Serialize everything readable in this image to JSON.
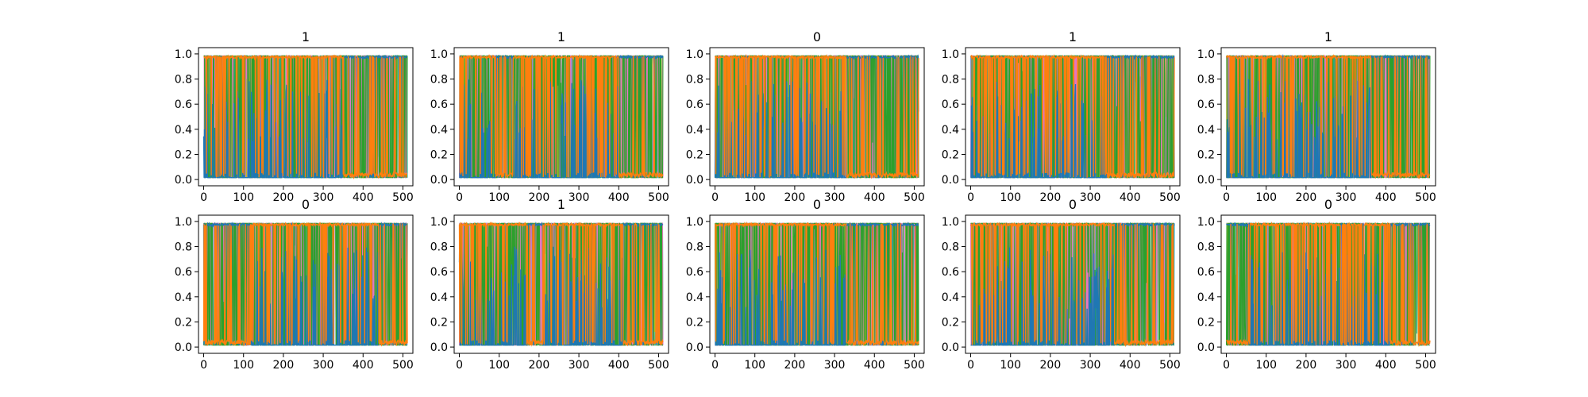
{
  "colors": {
    "blue": "#1f77b4",
    "orange": "#ff7f0e",
    "cyan": "#17becf",
    "olive": "#bcbd22",
    "pink": "#e377c2",
    "green": "#2ca02c",
    "axes": "#000000"
  },
  "chart_data": [
    {
      "type": "line",
      "title": "1",
      "xlim": [
        -13,
        525
      ],
      "ylim": [
        -0.05,
        1.05
      ],
      "xticks": [
        0,
        100,
        200,
        300,
        400,
        500
      ],
      "yticks": [
        0.0,
        0.2,
        0.4,
        0.6,
        0.8,
        1.0
      ],
      "n_points": 512,
      "segments": [
        {
          "dominant": "orange",
          "x": [
            0,
            350
          ]
        },
        {
          "dominant": "blue",
          "x": [
            350,
            512
          ]
        }
      ]
    },
    {
      "type": "line",
      "title": "1",
      "xlim": [
        -13,
        525
      ],
      "ylim": [
        -0.05,
        1.05
      ],
      "xticks": [
        0,
        100,
        200,
        300,
        400,
        500
      ],
      "yticks": [
        0.0,
        0.2,
        0.4,
        0.6,
        0.8,
        1.0
      ],
      "n_points": 512,
      "segments": [
        {
          "dominant": "orange",
          "x": [
            0,
            90
          ]
        },
        {
          "dominant": "blue",
          "x": [
            90,
            135
          ]
        },
        {
          "dominant": "orange",
          "x": [
            135,
            400
          ]
        },
        {
          "dominant": "blue",
          "x": [
            400,
            512
          ]
        }
      ]
    },
    {
      "type": "line",
      "title": "0",
      "xlim": [
        -13,
        525
      ],
      "ylim": [
        -0.05,
        1.05
      ],
      "xticks": [
        0,
        100,
        200,
        300,
        400,
        500
      ],
      "yticks": [
        0.0,
        0.2,
        0.4,
        0.6,
        0.8,
        1.0
      ],
      "n_points": 512,
      "segments": [
        {
          "dominant": "orange",
          "x": [
            0,
            330
          ]
        },
        {
          "dominant": "blue",
          "x": [
            330,
            512
          ]
        }
      ]
    },
    {
      "type": "line",
      "title": "1",
      "xlim": [
        -13,
        525
      ],
      "ylim": [
        -0.05,
        1.05
      ],
      "xticks": [
        0,
        100,
        200,
        300,
        400,
        500
      ],
      "yticks": [
        0.0,
        0.2,
        0.4,
        0.6,
        0.8,
        1.0
      ],
      "n_points": 512,
      "segments": [
        {
          "dominant": "orange",
          "x": [
            0,
            340
          ]
        },
        {
          "dominant": "blue",
          "x": [
            340,
            512
          ]
        }
      ]
    },
    {
      "type": "line",
      "title": "1",
      "xlim": [
        -13,
        525
      ],
      "ylim": [
        -0.05,
        1.05
      ],
      "xticks": [
        0,
        100,
        200,
        300,
        400,
        500
      ],
      "yticks": [
        0.0,
        0.2,
        0.4,
        0.6,
        0.8,
        1.0
      ],
      "n_points": 512,
      "segments": [
        {
          "dominant": "orange",
          "x": [
            0,
            365
          ]
        },
        {
          "dominant": "blue",
          "x": [
            365,
            512
          ]
        }
      ]
    },
    {
      "type": "line",
      "title": "0",
      "xlim": [
        -13,
        525
      ],
      "ylim": [
        -0.05,
        1.05
      ],
      "xticks": [
        0,
        100,
        200,
        300,
        400,
        500
      ],
      "yticks": [
        0.0,
        0.2,
        0.4,
        0.6,
        0.8,
        1.0
      ],
      "n_points": 512,
      "segments": [
        {
          "dominant": "blue",
          "x": [
            0,
            120
          ]
        },
        {
          "dominant": "orange",
          "x": [
            120,
            440
          ]
        },
        {
          "dominant": "blue",
          "x": [
            440,
            512
          ]
        }
      ]
    },
    {
      "type": "line",
      "title": "1",
      "xlim": [
        -13,
        525
      ],
      "ylim": [
        -0.05,
        1.05
      ],
      "xticks": [
        0,
        100,
        200,
        300,
        400,
        500
      ],
      "yticks": [
        0.0,
        0.2,
        0.4,
        0.6,
        0.8,
        1.0
      ],
      "n_points": 512,
      "segments": [
        {
          "dominant": "orange",
          "x": [
            0,
            170
          ]
        },
        {
          "dominant": "blue",
          "x": [
            170,
            210
          ]
        },
        {
          "dominant": "orange",
          "x": [
            210,
            410
          ]
        },
        {
          "dominant": "blue",
          "x": [
            410,
            512
          ]
        }
      ]
    },
    {
      "type": "line",
      "title": "0",
      "xlim": [
        -13,
        525
      ],
      "ylim": [
        -0.05,
        1.05
      ],
      "xticks": [
        0,
        100,
        200,
        300,
        400,
        500
      ],
      "yticks": [
        0.0,
        0.2,
        0.4,
        0.6,
        0.8,
        1.0
      ],
      "n_points": 512,
      "segments": [
        {
          "dominant": "orange",
          "x": [
            0,
            330
          ]
        },
        {
          "dominant": "blue",
          "x": [
            330,
            512
          ]
        }
      ]
    },
    {
      "type": "line",
      "title": "0",
      "xlim": [
        -13,
        525
      ],
      "ylim": [
        -0.05,
        1.05
      ],
      "xticks": [
        0,
        100,
        200,
        300,
        400,
        500
      ],
      "yticks": [
        0.0,
        0.2,
        0.4,
        0.6,
        0.8,
        1.0
      ],
      "n_points": 512,
      "segments": [
        {
          "dominant": "orange",
          "x": [
            0,
            360
          ]
        },
        {
          "dominant": "blue",
          "x": [
            360,
            512
          ]
        }
      ]
    },
    {
      "type": "line",
      "title": "0",
      "xlim": [
        -13,
        525
      ],
      "ylim": [
        -0.05,
        1.05
      ],
      "xticks": [
        0,
        100,
        200,
        300,
        400,
        500
      ],
      "yticks": [
        0.0,
        0.2,
        0.4,
        0.6,
        0.8,
        1.0
      ],
      "n_points": 512,
      "segments": [
        {
          "dominant": "blue",
          "x": [
            0,
            60
          ]
        },
        {
          "dominant": "orange",
          "x": [
            60,
            410
          ]
        },
        {
          "dominant": "blue",
          "x": [
            410,
            512
          ]
        }
      ]
    }
  ]
}
